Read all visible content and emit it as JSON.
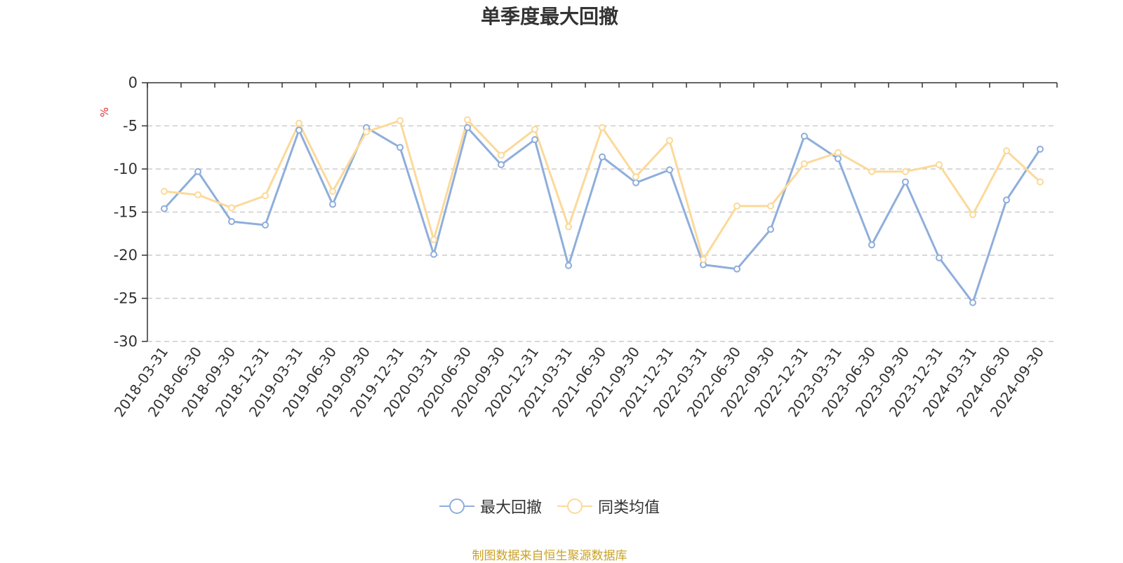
{
  "chart_data": {
    "type": "line",
    "title": "单季度最大回撤",
    "ylabel": "%",
    "ylim": [
      -30,
      0
    ],
    "yticks": [
      0,
      -5,
      -10,
      -15,
      -20,
      -25,
      -30
    ],
    "grid": true,
    "legend_position": "bottom",
    "categories": [
      "2018-03-31",
      "2018-06-30",
      "2018-09-30",
      "2018-12-31",
      "2019-03-31",
      "2019-06-30",
      "2019-09-30",
      "2019-12-31",
      "2020-03-31",
      "2020-06-30",
      "2020-09-30",
      "2020-12-31",
      "2021-03-31",
      "2021-06-30",
      "2021-09-30",
      "2021-12-31",
      "2022-03-31",
      "2022-06-30",
      "2022-09-30",
      "2022-12-31",
      "2023-03-31",
      "2023-06-30",
      "2023-09-30",
      "2023-12-31",
      "2024-03-31",
      "2024-06-30",
      "2024-09-30"
    ],
    "series": [
      {
        "name": "最大回撤",
        "color": "#8eaedb",
        "values": [
          -14.6,
          -10.3,
          -16.1,
          -16.5,
          -5.5,
          -14.1,
          -5.2,
          -7.5,
          -19.9,
          -5.2,
          -9.5,
          -6.6,
          -21.2,
          -8.6,
          -11.6,
          -10.1,
          -21.1,
          -21.6,
          -17.0,
          -6.2,
          -8.8,
          -18.8,
          -11.5,
          -20.3,
          -25.5,
          -13.6,
          -7.7
        ]
      },
      {
        "name": "同类均值",
        "color": "#fcd999",
        "values": [
          -12.6,
          -13.0,
          -14.5,
          -13.1,
          -4.7,
          -12.6,
          -5.7,
          -4.4,
          -18.2,
          -4.3,
          -8.4,
          -5.4,
          -16.7,
          -5.2,
          -10.9,
          -6.7,
          -20.5,
          -14.3,
          -14.3,
          -9.4,
          -8.1,
          -10.3,
          -10.3,
          -9.5,
          -15.3,
          -7.9,
          -11.5
        ]
      }
    ]
  },
  "source_note": "制图数据来自恒生聚源数据库",
  "axis_color": "#333333",
  "grid_color": "#cccccc",
  "ylabel_color": "#e03030",
  "source_color": "#c9a227"
}
